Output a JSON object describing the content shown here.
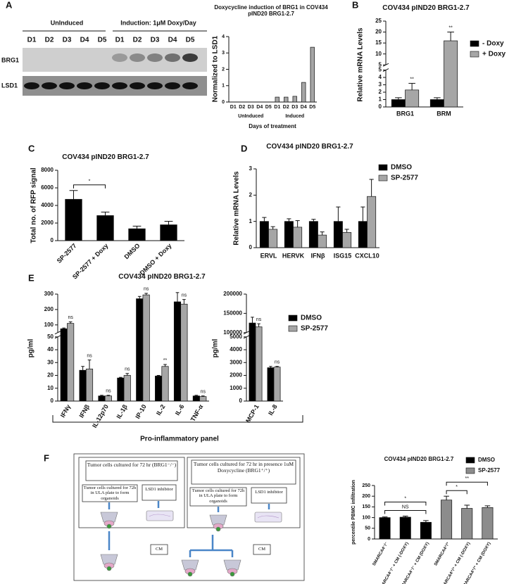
{
  "panel_labels": [
    "A",
    "B",
    "C",
    "D",
    "E",
    "F"
  ],
  "blot": {
    "groups": [
      "UnInduced",
      "Induction: 1μM Doxy/Day"
    ],
    "lanes": [
      "D1",
      "D2",
      "D3",
      "D4",
      "D5",
      "D1",
      "D2",
      "D3",
      "D4",
      "D5"
    ],
    "rows": [
      "BRG1",
      "LSD1"
    ]
  },
  "panel_caption": "Pro-inflammatory panel",
  "diagram": {
    "left_title": "Tumor cells cultured for 72 hr (BRG1⁻/⁻)",
    "right_title": "Tumor cells cultured for 72 hr in presence 1uM Doxycycline (BRG1⁺/⁺)",
    "left_organoids": "Tumor cells cultured for 72h in ULA plate to form organoids",
    "right_organoids": "Tumor cells cultured for 72h in ULA plate to form organoids",
    "left_inhibitor": "LSD1 inhibitor",
    "right_inhibitor": "LSD1 inhibitor",
    "left_cm": "CM",
    "right_cm": "CM"
  },
  "chart_data": [
    {
      "type": "bar",
      "title": "Doxycycline induction of BRG1 in COV434 pIND20 BRG1-2.7",
      "ylabel": "Normalized to LSD1",
      "xlabel": "Days of treatment",
      "categories": [
        "D1",
        "D2",
        "D3",
        "D4",
        "D5",
        "D1",
        "D2",
        "D3",
        "D4",
        "D5"
      ],
      "groups": [
        "UnInduced",
        "Induced"
      ],
      "values": [
        0,
        0,
        0,
        0,
        0,
        0.3,
        0.3,
        0.35,
        1.2,
        3.35
      ],
      "color": "#a6a6a6",
      "ylim": [
        0,
        4
      ],
      "yticks": [
        0,
        1,
        2,
        3,
        4
      ]
    },
    {
      "type": "bar",
      "title": "COV434 pIND20 BRG1-2.7",
      "ylabel": "Relative mRNA Levels",
      "categories": [
        "BRG1",
        "BRM"
      ],
      "series": [
        {
          "name": "- Doxy",
          "color": "#000000",
          "values": [
            1,
            1
          ],
          "errors": [
            0.25,
            0.25
          ]
        },
        {
          "name": "+ Doxy",
          "color": "#a6a6a6",
          "values": [
            2.3,
            16
          ],
          "errors": [
            0.9,
            4
          ],
          "significance": [
            "**",
            "**"
          ]
        }
      ],
      "segments": [
        {
          "ylim": [
            0,
            5
          ],
          "yticks": [
            0,
            1,
            2,
            3,
            4,
            5
          ]
        },
        {
          "ylim": [
            5,
            25
          ],
          "yticks": [
            5,
            10,
            15,
            20,
            25
          ]
        }
      ]
    },
    {
      "type": "bar",
      "title": "COV434 pIND20 BRG1-2.7",
      "ylabel": "Total no. of RFP signal",
      "categories": [
        "SP-2577",
        "SP-2577 + Doxy",
        "DMSO",
        "DMSO + Doxy"
      ],
      "values": [
        4700,
        2850,
        1350,
        1800
      ],
      "errors": [
        1000,
        400,
        300,
        400
      ],
      "color": "#000000",
      "ylim": [
        0,
        8000
      ],
      "yticks": [
        0,
        2000,
        4000,
        6000,
        8000
      ],
      "brackets": [
        {
          "text": "*",
          "from": 0,
          "to": 1
        }
      ]
    },
    {
      "type": "bar",
      "title": "COV434 pIND20 BRG1-2.7",
      "ylabel": "Relative mRNA Levels",
      "categories": [
        "ERVL",
        "HERVK",
        "IFNβ",
        "ISG15",
        "CXCL10"
      ],
      "series": [
        {
          "name": "DMSO",
          "color": "#000000",
          "values": [
            1,
            1,
            1,
            1,
            1
          ],
          "errors": [
            0.15,
            0.1,
            0.08,
            0.55,
            0.55
          ]
        },
        {
          "name": "SP-2577",
          "color": "#a6a6a6",
          "values": [
            0.7,
            0.78,
            0.48,
            0.58,
            1.95
          ],
          "errors": [
            0.1,
            0.25,
            0.12,
            0.12,
            0.65
          ]
        }
      ],
      "ylim": [
        0,
        3
      ],
      "yticks": [
        0,
        1,
        2,
        3
      ]
    },
    {
      "type": "bar",
      "title": "COV434 pIND20 BRG1-2.7",
      "ylabel": "pg/ml",
      "categories": [
        "IFNγ",
        "IFNβ",
        "IL-12p70",
        "IL-1β",
        "IP-10",
        "IL-2",
        "IL-6",
        "TNF-α"
      ],
      "series": [
        {
          "name": "DMSO",
          "color": "#000000",
          "values": [
            75,
            24,
            4,
            18,
            270,
            19.5,
            250,
            4
          ],
          "errors": [
            5,
            3,
            0.5,
            0.5,
            15,
            0.5,
            60,
            0.5
          ]
        },
        {
          "name": "SP-2577",
          "color": "#a6a6a6",
          "values": [
            110,
            25,
            4,
            20,
            295,
            27,
            235,
            3.5
          ],
          "errors": [
            10,
            7,
            0.5,
            1.5,
            10,
            1.5,
            30,
            0.5
          ],
          "significance": [
            "ns",
            "ns",
            "ns",
            "ns",
            "ns",
            "**",
            "ns",
            "ns"
          ]
        }
      ],
      "segments": [
        {
          "ylim": [
            0,
            50
          ],
          "yticks": [
            0,
            10,
            20,
            30,
            40,
            50
          ]
        },
        {
          "ylim": [
            50,
            300
          ],
          "yticks": [
            100,
            200,
            300
          ]
        }
      ]
    },
    {
      "type": "bar",
      "ylabel": "pg/ml",
      "categories": [
        "MCP-1",
        "IL-8"
      ],
      "series": [
        {
          "color": "#000000",
          "values": [
            125000,
            2600
          ],
          "errors": [
            15000,
            100
          ]
        },
        {
          "color": "#a6a6a6",
          "values": [
            115000,
            2650
          ],
          "errors": [
            8000,
            50
          ],
          "significance": [
            "ns",
            "ns"
          ]
        }
      ],
      "segments": [
        {
          "ylim": [
            0,
            5000
          ],
          "yticks": [
            0,
            1000,
            2000,
            3000,
            4000,
            5000
          ]
        },
        {
          "ylim": [
            100000,
            200000
          ],
          "yticks": [
            100000,
            150000,
            200000
          ]
        }
      ]
    },
    {
      "type": "bar",
      "title": "COV434 pIND20 BRG1-2.7",
      "ylabel": "percentile PBMC infiltration",
      "categories": [
        "SMARCA4⁻/⁻",
        "SMARCA4⁻/⁻ + CM (-DOXY)",
        "SMARCA4⁻/⁻ + CM (DOXY)",
        "SMARCA4⁺/⁺",
        "SMARCA4⁺/⁺ + CM (-DOXY)",
        "SMARCA4⁺/⁺ + CM (DOXY)"
      ],
      "series": [
        {
          "name": "DMSO",
          "color": "#000000",
          "values": [
            100,
            102,
            78,
            null,
            null,
            null
          ],
          "errors": [
            3,
            5,
            8,
            null,
            null,
            null
          ]
        },
        {
          "name": "SP-2577",
          "color": "#8c8c8c",
          "values": [
            null,
            null,
            null,
            182,
            143,
            147
          ],
          "errors": [
            null,
            null,
            null,
            18,
            15,
            8
          ]
        }
      ],
      "ylim": [
        0,
        250
      ],
      "yticks": [
        0,
        50,
        100,
        150,
        200,
        250
      ],
      "brackets": [
        {
          "text": "NS",
          "from": 0,
          "to": 2
        },
        {
          "text": "*",
          "from": 0,
          "to": 2
        },
        {
          "text": "*",
          "from": 3,
          "to": 4
        },
        {
          "text": "**",
          "from": 3,
          "to": 5
        }
      ]
    }
  ]
}
